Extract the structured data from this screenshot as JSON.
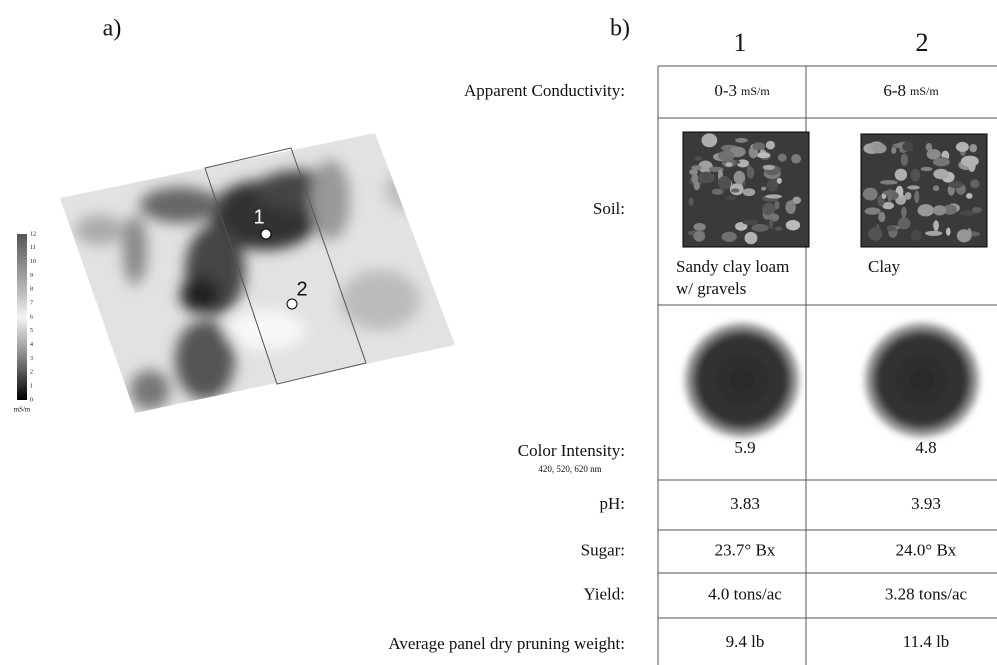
{
  "panel_a": {
    "label": "a)",
    "points": [
      "1",
      "2"
    ],
    "colorbar": {
      "ticks": [
        "12",
        "11",
        "10",
        "9",
        "8",
        "7",
        "6",
        "5",
        "4",
        "3",
        "2",
        "1",
        "0"
      ],
      "unit": "mS/m"
    }
  },
  "panel_b": {
    "label": "b)",
    "columns": [
      "1",
      "2"
    ],
    "rows": [
      {
        "label": "Apparent Conductivity:",
        "cells": [
          {
            "value": "0-3",
            "unit": "mS/m"
          },
          {
            "value": "6-8",
            "unit": "mS/m"
          }
        ]
      },
      {
        "label": "Soil:",
        "cells": [
          "Sandy clay loam w/ gravels",
          "Clay"
        ]
      },
      {
        "label": "Color Intensity:",
        "sublabel": "420, 520, 620 nm",
        "cells": [
          "5.9",
          "4.8"
        ]
      },
      {
        "label": "pH:",
        "cells": [
          "3.83",
          "3.93"
        ]
      },
      {
        "label": "Sugar:",
        "cells": [
          "23.7° Bx",
          "24.0° Bx"
        ]
      },
      {
        "label": "Yield:",
        "cells": [
          "4.0 tons/ac",
          "3.28 tons/ac"
        ]
      },
      {
        "label": "Average panel dry pruning weight:",
        "cells": [
          "9.4 lb",
          "11.4 lb"
        ]
      }
    ]
  }
}
